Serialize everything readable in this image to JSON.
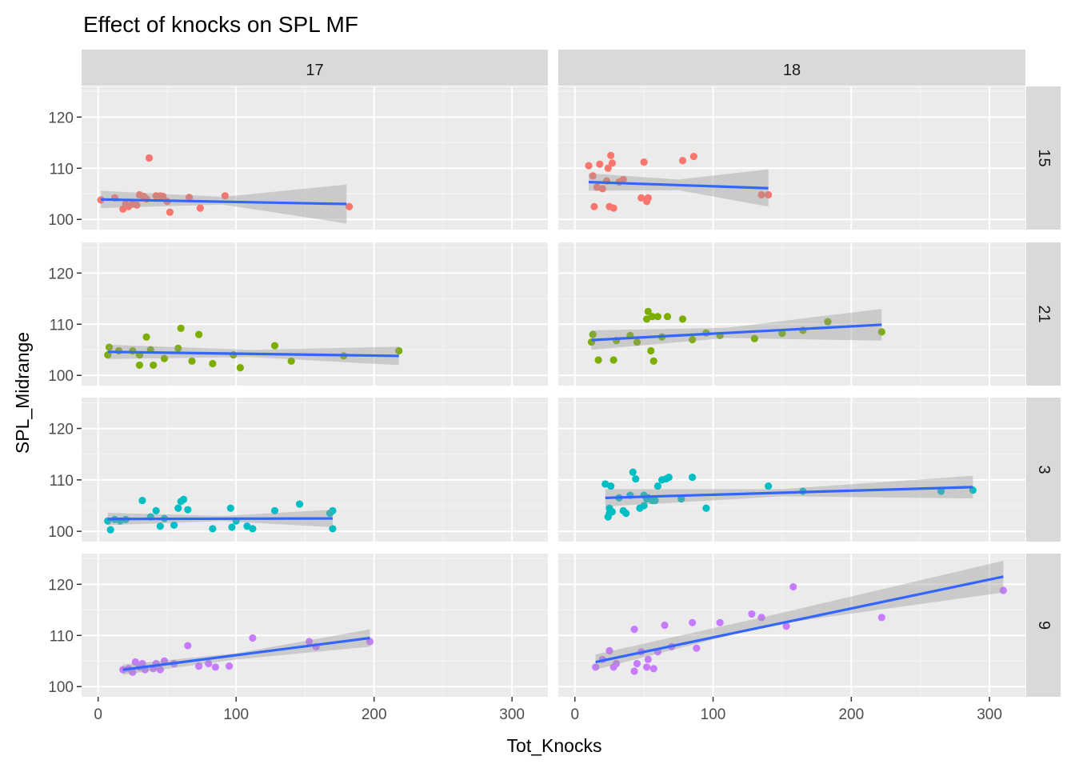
{
  "chart_data": {
    "type": "scatter",
    "title": "Effect of knocks on SPL MF",
    "xlabel": "Tot_Knocks",
    "ylabel": "SPL_Midrange",
    "xlim": [
      -12,
      326
    ],
    "ylim": [
      98,
      126
    ],
    "x_ticks": [
      0,
      100,
      200,
      300
    ],
    "y_ticks": [
      100,
      110,
      120
    ],
    "grid": true,
    "legend": "none",
    "smoothing": "linear fit (lm) with grey confidence band",
    "facet_columns": [
      "17",
      "18"
    ],
    "facet_rows": [
      "15",
      "21",
      "3",
      "9"
    ],
    "colors": {
      "15": "#F8766D",
      "21": "#7CAE00",
      "3": "#00BFC4",
      "9": "#C77CFF",
      "fit_line": "#3366FF",
      "band": "#999999",
      "panel_bg": "#EBEBEB",
      "strip_bg": "#D9D9D9"
    },
    "panels": [
      {
        "col": "17",
        "row": "15",
        "points": [
          [
            2,
            103.8
          ],
          [
            12,
            104.2
          ],
          [
            18,
            102.0
          ],
          [
            20,
            103.0
          ],
          [
            22,
            102.5
          ],
          [
            25,
            103.0
          ],
          [
            28,
            102.8
          ],
          [
            30,
            104.8
          ],
          [
            33,
            104.5
          ],
          [
            35,
            104.0
          ],
          [
            37,
            112.0
          ],
          [
            42,
            104.6
          ],
          [
            45,
            104.6
          ],
          [
            47,
            104.5
          ],
          [
            50,
            103.5
          ],
          [
            52,
            101.4
          ],
          [
            66,
            104.3
          ],
          [
            74,
            102.2
          ],
          [
            92,
            104.6
          ],
          [
            182,
            102.5
          ]
        ],
        "fit": {
          "x": [
            2,
            180
          ],
          "y": [
            103.9,
            103.0
          ]
        },
        "band": {
          "x": [
            2,
            90,
            180
          ],
          "lower": [
            102.2,
            102.9,
            99.2
          ],
          "upper": [
            105.6,
            104.4,
            106.8
          ]
        }
      },
      {
        "col": "18",
        "row": "15",
        "points": [
          [
            10,
            110.5
          ],
          [
            13,
            108.5
          ],
          [
            14,
            102.5
          ],
          [
            16,
            106.3
          ],
          [
            18,
            110.8
          ],
          [
            20,
            106.0
          ],
          [
            23,
            107.5
          ],
          [
            24,
            110.0
          ],
          [
            25,
            102.5
          ],
          [
            26,
            112.5
          ],
          [
            27,
            111.0
          ],
          [
            28,
            102.2
          ],
          [
            32,
            107.3
          ],
          [
            35,
            107.8
          ],
          [
            48,
            104.2
          ],
          [
            50,
            111.2
          ],
          [
            52,
            103.5
          ],
          [
            53,
            104.2
          ],
          [
            78,
            111.5
          ],
          [
            86,
            112.3
          ],
          [
            135,
            104.8
          ],
          [
            140,
            104.8
          ]
        ],
        "fit": {
          "x": [
            10,
            140
          ],
          "y": [
            107.3,
            106.1
          ]
        },
        "band": {
          "x": [
            10,
            75,
            140
          ],
          "lower": [
            105.6,
            105.7,
            102.5
          ],
          "upper": [
            109.0,
            107.8,
            109.8
          ]
        }
      },
      {
        "col": "17",
        "row": "21",
        "points": [
          [
            7,
            104.0
          ],
          [
            8,
            105.5
          ],
          [
            15,
            104.8
          ],
          [
            25,
            104.8
          ],
          [
            30,
            104.0
          ],
          [
            30,
            102.0
          ],
          [
            35,
            107.5
          ],
          [
            38,
            105.0
          ],
          [
            40,
            102.0
          ],
          [
            48,
            103.3
          ],
          [
            58,
            105.3
          ],
          [
            60,
            109.2
          ],
          [
            68,
            102.8
          ],
          [
            73,
            108.0
          ],
          [
            83,
            102.3
          ],
          [
            98,
            104.0
          ],
          [
            103,
            101.5
          ],
          [
            128,
            105.8
          ],
          [
            140,
            102.8
          ],
          [
            178,
            103.8
          ],
          [
            218,
            104.8
          ]
        ],
        "fit": {
          "x": [
            7,
            218
          ],
          "y": [
            104.6,
            103.8
          ]
        },
        "band": {
          "x": [
            7,
            110,
            218
          ],
          "lower": [
            103.2,
            103.6,
            102.0
          ],
          "upper": [
            106.0,
            105.0,
            105.6
          ]
        }
      },
      {
        "col": "18",
        "row": "21",
        "points": [
          [
            12,
            106.5
          ],
          [
            13,
            108.0
          ],
          [
            17,
            103.0
          ],
          [
            28,
            103.0
          ],
          [
            30,
            106.8
          ],
          [
            40,
            107.8
          ],
          [
            45,
            106.5
          ],
          [
            52,
            111.0
          ],
          [
            53,
            112.5
          ],
          [
            55,
            104.8
          ],
          [
            56,
            111.5
          ],
          [
            57,
            102.8
          ],
          [
            60,
            111.5
          ],
          [
            63,
            107.5
          ],
          [
            67,
            111.5
          ],
          [
            78,
            111.0
          ],
          [
            85,
            107.0
          ],
          [
            95,
            108.3
          ],
          [
            105,
            107.8
          ],
          [
            130,
            107.2
          ],
          [
            150,
            108.2
          ],
          [
            165,
            108.8
          ],
          [
            183,
            110.5
          ],
          [
            222,
            108.5
          ]
        ],
        "fit": {
          "x": [
            12,
            222
          ],
          "y": [
            106.9,
            109.9
          ]
        },
        "band": {
          "x": [
            12,
            110,
            222
          ],
          "lower": [
            105.0,
            107.3,
            106.8
          ],
          "upper": [
            108.8,
            109.3,
            113.0
          ]
        }
      },
      {
        "col": "17",
        "row": "3",
        "points": [
          [
            7,
            102.0
          ],
          [
            9,
            100.3
          ],
          [
            12,
            102.3
          ],
          [
            16,
            102.0
          ],
          [
            20,
            102.3
          ],
          [
            32,
            106.0
          ],
          [
            38,
            102.8
          ],
          [
            42,
            104.0
          ],
          [
            45,
            101.0
          ],
          [
            48,
            102.5
          ],
          [
            55,
            101.2
          ],
          [
            58,
            104.5
          ],
          [
            60,
            105.8
          ],
          [
            62,
            106.2
          ],
          [
            65,
            104.2
          ],
          [
            83,
            100.5
          ],
          [
            96,
            104.5
          ],
          [
            97,
            100.8
          ],
          [
            100,
            102.0
          ],
          [
            108,
            101.0
          ],
          [
            112,
            100.5
          ],
          [
            128,
            104.0
          ],
          [
            146,
            105.3
          ],
          [
            168,
            103.5
          ],
          [
            170,
            104.0
          ],
          [
            170,
            100.5
          ]
        ],
        "fit": {
          "x": [
            7,
            170
          ],
          "y": [
            102.4,
            102.5
          ]
        },
        "band": {
          "x": [
            7,
            90,
            170
          ],
          "lower": [
            101.2,
            102.0,
            100.8
          ],
          "upper": [
            103.6,
            103.0,
            104.2
          ]
        }
      },
      {
        "col": "18",
        "row": "3",
        "points": [
          [
            22,
            109.2
          ],
          [
            24,
            102.8
          ],
          [
            25,
            103.5
          ],
          [
            25,
            104.5
          ],
          [
            26,
            108.8
          ],
          [
            27,
            103.8
          ],
          [
            32,
            106.5
          ],
          [
            35,
            104.0
          ],
          [
            37,
            103.5
          ],
          [
            40,
            107.0
          ],
          [
            42,
            111.5
          ],
          [
            44,
            110.2
          ],
          [
            47,
            104.5
          ],
          [
            50,
            105.0
          ],
          [
            50,
            107.0
          ],
          [
            52,
            106.3
          ],
          [
            53,
            106.5
          ],
          [
            56,
            106.0
          ],
          [
            58,
            106.0
          ],
          [
            60,
            108.8
          ],
          [
            63,
            110.0
          ],
          [
            66,
            110.2
          ],
          [
            68,
            110.5
          ],
          [
            77,
            106.3
          ],
          [
            85,
            110.5
          ],
          [
            95,
            104.5
          ],
          [
            140,
            108.8
          ],
          [
            165,
            107.8
          ],
          [
            265,
            107.8
          ],
          [
            288,
            108.0
          ]
        ],
        "fit": {
          "x": [
            22,
            288
          ],
          "y": [
            106.5,
            108.6
          ]
        },
        "band": {
          "x": [
            22,
            150,
            288
          ],
          "lower": [
            104.8,
            106.8,
            106.4
          ],
          "upper": [
            108.2,
            108.2,
            110.8
          ]
        }
      },
      {
        "col": "17",
        "row": "9",
        "points": [
          [
            18,
            103.3
          ],
          [
            22,
            103.5
          ],
          [
            25,
            102.8
          ],
          [
            27,
            104.8
          ],
          [
            30,
            103.8
          ],
          [
            32,
            104.5
          ],
          [
            34,
            103.3
          ],
          [
            40,
            103.5
          ],
          [
            42,
            104.5
          ],
          [
            45,
            103.3
          ],
          [
            48,
            105.0
          ],
          [
            55,
            104.5
          ],
          [
            65,
            108.0
          ],
          [
            73,
            104.0
          ],
          [
            80,
            104.5
          ],
          [
            85,
            103.8
          ],
          [
            95,
            104.0
          ],
          [
            112,
            109.5
          ],
          [
            153,
            108.8
          ],
          [
            158,
            107.8
          ],
          [
            197,
            108.8
          ]
        ],
        "fit": {
          "x": [
            18,
            197
          ],
          "y": [
            103.3,
            109.5
          ]
        },
        "band": {
          "x": [
            18,
            100,
            197
          ],
          "lower": [
            102.3,
            105.3,
            107.8
          ],
          "upper": [
            104.3,
            106.5,
            111.2
          ]
        }
      },
      {
        "col": "18",
        "row": "9",
        "points": [
          [
            15,
            103.8
          ],
          [
            20,
            105.3
          ],
          [
            25,
            107.0
          ],
          [
            28,
            103.8
          ],
          [
            30,
            104.5
          ],
          [
            43,
            103.0
          ],
          [
            43,
            111.2
          ],
          [
            45,
            104.5
          ],
          [
            48,
            106.8
          ],
          [
            52,
            103.8
          ],
          [
            53,
            105.3
          ],
          [
            57,
            103.5
          ],
          [
            60,
            106.8
          ],
          [
            65,
            112.0
          ],
          [
            70,
            107.8
          ],
          [
            85,
            112.5
          ],
          [
            88,
            107.5
          ],
          [
            105,
            112.5
          ],
          [
            128,
            114.2
          ],
          [
            135,
            113.5
          ],
          [
            153,
            111.8
          ],
          [
            158,
            119.5
          ],
          [
            222,
            113.5
          ],
          [
            310,
            118.8
          ]
        ],
        "fit": {
          "x": [
            15,
            310
          ],
          "y": [
            104.8,
            121.5
          ]
        },
        "band": {
          "x": [
            15,
            140,
            310
          ],
          "lower": [
            103.3,
            112.0,
            118.4
          ],
          "upper": [
            106.3,
            113.8,
            124.6
          ]
        }
      }
    ]
  }
}
